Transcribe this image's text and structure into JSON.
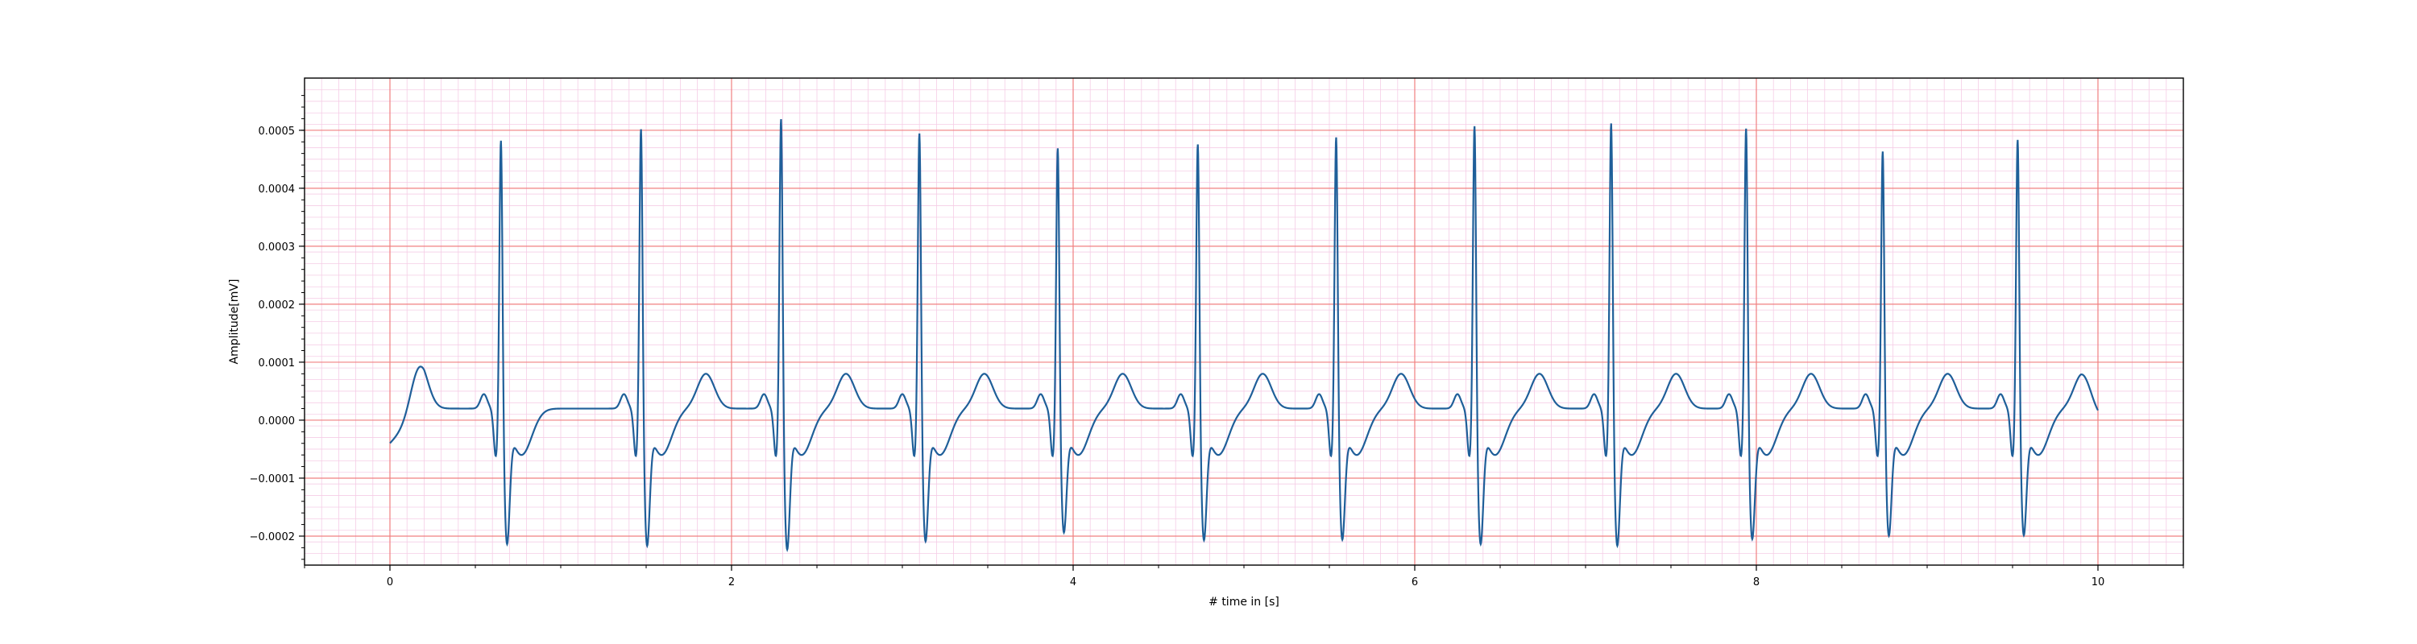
{
  "chart_data": {
    "type": "line",
    "title": "",
    "xlabel": "# time in [s]",
    "ylabel": "Amplitude[mV]",
    "xlim": [
      -0.5,
      10.5
    ],
    "ylim": [
      -0.00025,
      0.00059
    ],
    "xticks": [
      0,
      2,
      4,
      6,
      8,
      10
    ],
    "xtick_labels": [
      "0",
      "2",
      "4",
      "6",
      "8",
      "10"
    ],
    "yticks": [
      -0.0002,
      -0.0001,
      0.0,
      0.0001,
      0.0002,
      0.0003,
      0.0004,
      0.0005
    ],
    "ytick_labels": [
      "−0.0002",
      "−0.0001",
      "0.0000",
      "0.0001",
      "0.0002",
      "0.0003",
      "0.0004",
      "0.0005"
    ],
    "grid": {
      "major": true,
      "minor": true,
      "major_color": "#f08080",
      "minor_color": "#f5cde6"
    },
    "line_color": "#1f5f99",
    "series": [
      {
        "name": "",
        "beats": [
          {
            "r_time": 0.65,
            "r_peak": 0.000515,
            "s_min": -0.000195
          },
          {
            "r_time": 1.47,
            "r_peak": 0.000535,
            "s_min": -0.000198
          },
          {
            "r_time": 2.29,
            "r_peak": 0.000553,
            "s_min": -0.000205
          },
          {
            "r_time": 3.1,
            "r_peak": 0.000527,
            "s_min": -0.00019
          },
          {
            "r_time": 3.91,
            "r_peak": 0.0005,
            "s_min": -0.000174
          },
          {
            "r_time": 4.73,
            "r_peak": 0.000508,
            "s_min": -0.000188
          },
          {
            "r_time": 5.54,
            "r_peak": 0.00052,
            "s_min": -0.000187
          },
          {
            "r_time": 6.35,
            "r_peak": 0.00054,
            "s_min": -0.000195
          },
          {
            "r_time": 7.15,
            "r_peak": 0.000545,
            "s_min": -0.000198
          },
          {
            "r_time": 7.94,
            "r_peak": 0.000535,
            "s_min": -0.000186
          },
          {
            "r_time": 8.74,
            "r_peak": 0.000495,
            "s_min": -0.00018
          },
          {
            "r_time": 9.53,
            "r_peak": 0.000515,
            "s_min": -0.000179
          }
        ],
        "start_value": -4e-05,
        "end_value": 5e-06,
        "t_wave_peak": 8e-05,
        "first_t_wave_peak": 0.0001,
        "baseline": 2e-05,
        "t_start": 0.0,
        "t_end": 10.0
      }
    ]
  }
}
